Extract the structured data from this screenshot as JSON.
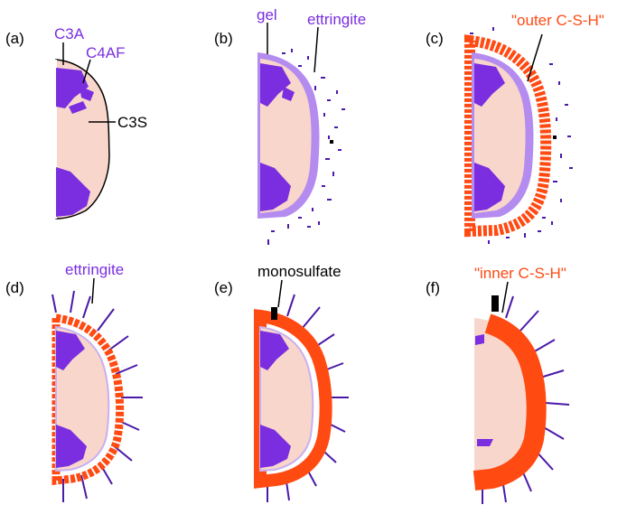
{
  "panels": [
    {
      "letter": "(a)",
      "labels": [
        "C3A",
        "C4AF",
        "C3S"
      ]
    },
    {
      "letter": "(b)",
      "labels": [
        "gel",
        "ettringite"
      ]
    },
    {
      "letter": "(c)",
      "labels": [
        "\"outer C-S-H\""
      ]
    },
    {
      "letter": "(d)",
      "labels": [
        "ettringite"
      ]
    },
    {
      "letter": "(e)",
      "labels": [
        "monosulfate"
      ]
    },
    {
      "letter": "(f)",
      "labels": [
        "\"inner C-S-H\""
      ]
    }
  ],
  "colors": {
    "c3s": "#f9d6cb",
    "c3a": "#7a2ee0",
    "c4af": "#7a2ee0",
    "gel": "#b48cf0",
    "ettringite": "#4a1aa8",
    "csh": "#ff4a12",
    "monosulfate": "#000000",
    "purple_label": "#7a2ee0",
    "orange_label": "#ff4a12",
    "black_label": "#000000"
  }
}
